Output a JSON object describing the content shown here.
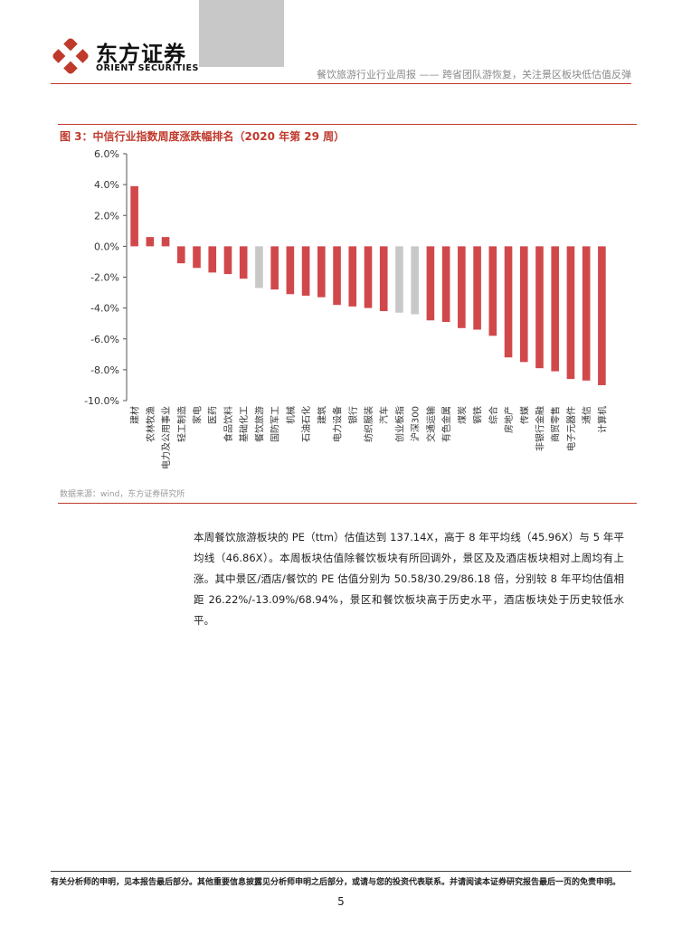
{
  "header": {
    "logo_cn": "东方证券",
    "logo_en": "ORIENT SECURITIES",
    "report_title": "餐饮旅游行业行业周报 —— 跨省团队游恢复，关注景区板块低估值反弹"
  },
  "figure": {
    "title": "图 3：中信行业指数周度涨跌幅排名（2020 年第 29 周）",
    "source": "数据来源：wind，东方证券研究所"
  },
  "chart_data": {
    "type": "bar",
    "title": "",
    "xlabel": "",
    "ylabel": "",
    "ylim": [
      -10,
      6
    ],
    "yticks": [
      "6.0%",
      "4.0%",
      "2.0%",
      "0.0%",
      "-2.0%",
      "-4.0%",
      "-6.0%",
      "-8.0%",
      "-10.0%"
    ],
    "categories": [
      "建材",
      "农林牧渔",
      "电力及公用事业",
      "轻工制造",
      "家电",
      "医药",
      "食品饮料",
      "基础化工",
      "餐饮旅游",
      "国防军工",
      "机械",
      "石油石化",
      "建筑",
      "电力设备",
      "银行",
      "纺织服装",
      "汽车",
      "创业板指",
      "沪深300",
      "交通运输",
      "有色金属",
      "煤炭",
      "钢铁",
      "综合",
      "房地产",
      "传媒",
      "非银行金融",
      "商贸零售",
      "电子元器件",
      "通信",
      "计算机"
    ],
    "values": [
      3.9,
      0.6,
      0.6,
      -1.1,
      -1.4,
      -1.7,
      -1.8,
      -2.1,
      -2.7,
      -2.8,
      -3.1,
      -3.2,
      -3.3,
      -3.8,
      -3.9,
      -4.0,
      -4.2,
      -4.3,
      -4.4,
      -4.8,
      -4.9,
      -5.3,
      -5.4,
      -5.8,
      -7.2,
      -7.5,
      -7.9,
      -8.1,
      -8.6,
      -8.7,
      -9.0
    ],
    "highlight": [
      "餐饮旅游",
      "创业板指",
      "沪深300"
    ],
    "colors": {
      "bar": "#d1484b",
      "highlight": "#c8c8c8"
    }
  },
  "body": {
    "paragraph": "本周餐饮旅游板块的 PE（ttm）估值达到 137.14X，高于 8 年平均线（45.96X）与 5 年平均线（46.86X）。本周板块估值除餐饮板块有所回调外，景区及及酒店板块相对上周均有上涨。其中景区/酒店/餐饮的 PE 估值分别为 50.58/30.29/86.18 倍，分别较 8 年平均估值相距 26.22%/-13.09%/68.94%，景区和餐饮板块高于历史水平，酒店板块处于历史较低水平。"
  },
  "footer": {
    "disclaimer": "有关分析师的申明，见本报告最后部分。其他重要信息披露见分析师申明之后部分，或请与您的投资代表联系。并请阅读本证券研究报告最后一页的免责申明。",
    "page_number": "5"
  }
}
